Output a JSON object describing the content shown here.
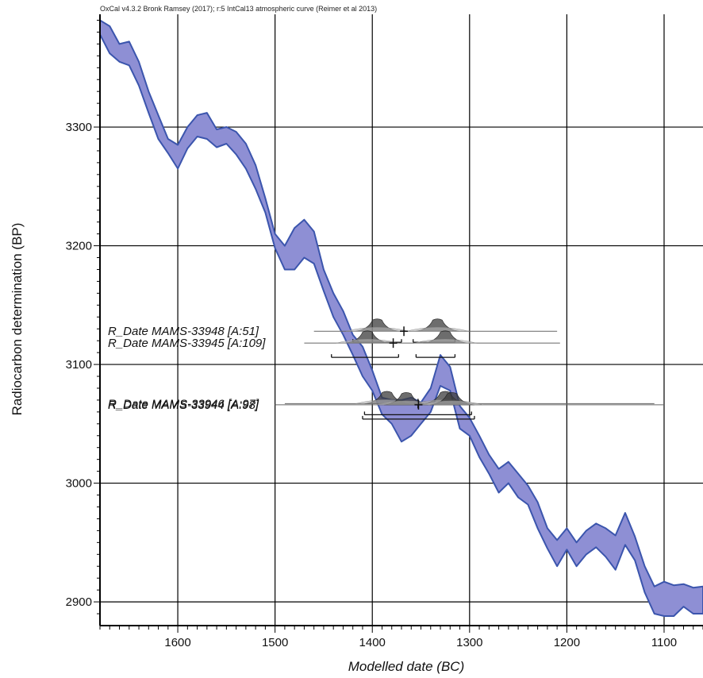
{
  "header": {
    "credit": "OxCal v4.3.2 Bronk Ramsey (2017); r:5 IntCal13 atmospheric curve (Reimer et al 2013)"
  },
  "chart_data": {
    "type": "area",
    "xlabel": "Modelled date (BC)",
    "ylabel": "Radiocarbon determination (BP)",
    "xlim": [
      1680,
      1060
    ],
    "ylim": [
      2880,
      3395
    ],
    "x_ticks": [
      1600,
      1500,
      1400,
      1300,
      1200,
      1100
    ],
    "y_ticks": [
      2900,
      3000,
      3100,
      3200,
      3300
    ],
    "grid": true,
    "series": [
      {
        "x": [
          1680,
          1670,
          1660,
          1650,
          1640,
          1630,
          1620,
          1610,
          1600,
          1590,
          1580,
          1570,
          1560,
          1550,
          1540,
          1530,
          1520,
          1510,
          1500,
          1490,
          1480,
          1470,
          1460,
          1450,
          1440,
          1430,
          1420,
          1410,
          1400,
          1390,
          1380,
          1370,
          1360,
          1350,
          1340,
          1330,
          1320,
          1310,
          1300,
          1290,
          1280,
          1270,
          1260,
          1250,
          1240,
          1230,
          1220,
          1210,
          1200,
          1190,
          1180,
          1170,
          1160,
          1150,
          1140,
          1130,
          1120,
          1110,
          1100,
          1090,
          1080,
          1070,
          1060
        ],
        "upper": [
          3390,
          3385,
          3370,
          3372,
          3355,
          3330,
          3310,
          3290,
          3285,
          3300,
          3310,
          3312,
          3298,
          3300,
          3296,
          3286,
          3268,
          3240,
          3210,
          3200,
          3215,
          3222,
          3212,
          3180,
          3160,
          3145,
          3125,
          3115,
          3095,
          3072,
          3070,
          3070,
          3072,
          3068,
          3080,
          3108,
          3098,
          3065,
          3055,
          3040,
          3024,
          3012,
          3018,
          3008,
          2998,
          2984,
          2962,
          2952,
          2962,
          2950,
          2960,
          2966,
          2962,
          2956,
          2975,
          2955,
          2930,
          2913,
          2917,
          2914,
          2915,
          2912,
          2913
        ],
        "lower": [
          3378,
          3362,
          3355,
          3352,
          3335,
          3312,
          3290,
          3278,
          3265,
          3282,
          3292,
          3290,
          3283,
          3286,
          3277,
          3265,
          3248,
          3228,
          3198,
          3180,
          3180,
          3190,
          3185,
          3162,
          3140,
          3125,
          3108,
          3090,
          3078,
          3058,
          3050,
          3035,
          3040,
          3050,
          3060,
          3082,
          3078,
          3046,
          3040,
          3022,
          3008,
          2992,
          3000,
          2988,
          2982,
          2962,
          2945,
          2930,
          2944,
          2930,
          2940,
          2946,
          2938,
          2927,
          2948,
          2935,
          2908,
          2890,
          2888,
          2888,
          2896,
          2890,
          2890
        ]
      }
    ],
    "r_dates": [
      {
        "label": "R_Date MAMS-33948 [A:51]",
        "mean": 3128,
        "line_range": [
          1460,
          1210
        ],
        "posterior_peaks": [
          1395,
          1333
        ],
        "range_bars": [
          [
            1420,
            1370
          ],
          [
            1358,
            1315
          ]
        ]
      },
      {
        "label": "R_Date MAMS-33945 [A:109]",
        "mean": 3118,
        "line_range": [
          1470,
          1207
        ],
        "posterior_peaks": [
          1405,
          1325
        ],
        "range_bars": [
          [
            1442,
            1373
          ],
          [
            1355,
            1315
          ]
        ]
      },
      {
        "label": "R_Date MAMS-33946 [A:97]",
        "mean": 3067,
        "line_range": [
          1490,
          1110
        ],
        "posterior_peaks": [
          1385,
          1325
        ],
        "range_bars": [
          [
            1408,
            1298
          ]
        ]
      },
      {
        "label": "R_Date MAMS-33944 [A:98]",
        "mean": 3066,
        "line_range": [
          1500,
          1100
        ],
        "posterior_peaks": [
          1365,
          1318
        ],
        "range_bars": [
          [
            1410,
            1295
          ]
        ]
      }
    ]
  },
  "colors": {
    "band_fill": "#8e8fd4",
    "band_stroke": "#3b55ad",
    "grid": "#000000",
    "distribution": "#3c3c3c"
  }
}
